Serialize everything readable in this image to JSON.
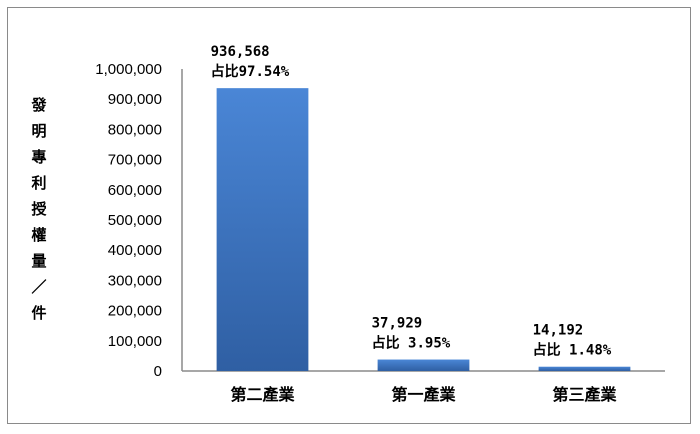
{
  "chart_data": {
    "type": "bar",
    "ylabel": "發明專利授權量／件",
    "categories": [
      "第二產業",
      "第一產業",
      "第三產業"
    ],
    "values": [
      936568,
      37929,
      14192
    ],
    "value_labels": [
      "936,568",
      "37,929",
      "14,192"
    ],
    "share_labels": [
      "占比97.54%",
      "占比 3.95%",
      "占比 1.48%"
    ],
    "ylim": [
      0,
      1000000
    ],
    "yticks": [
      "0",
      "100,000",
      "200,000",
      "300,000",
      "400,000",
      "500,000",
      "600,000",
      "700,000",
      "800,000",
      "900,000",
      "1,000,000"
    ],
    "grid": false,
    "legend": "none",
    "colors": {
      "bar_top": "#4a86d6",
      "bar_bottom": "#2f5fa3",
      "axis": "#8a8a8a"
    }
  }
}
